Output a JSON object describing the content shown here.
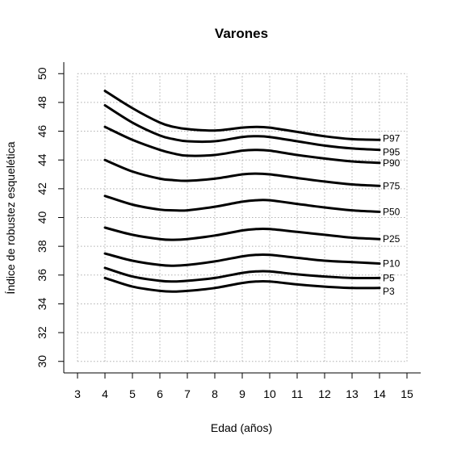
{
  "chart_data": {
    "type": "line",
    "title": "Varones",
    "xlabel": "Edad (años)",
    "ylabel": "Índice de robustez esquelética",
    "xlim": [
      3,
      15
    ],
    "ylim": [
      30,
      50
    ],
    "xticks": [
      3,
      4,
      5,
      6,
      7,
      8,
      9,
      10,
      11,
      12,
      13,
      14,
      15
    ],
    "yticks": [
      30,
      32,
      34,
      36,
      38,
      40,
      42,
      44,
      46,
      48,
      50
    ],
    "grid": true,
    "x": [
      4,
      5,
      6,
      6.5,
      7,
      8,
      9,
      9.5,
      10,
      11,
      12,
      13,
      14
    ],
    "series": [
      {
        "name": "P3",
        "values": [
          35.8,
          35.2,
          34.9,
          34.85,
          34.9,
          35.1,
          35.45,
          35.55,
          35.55,
          35.35,
          35.2,
          35.1,
          35.1
        ]
      },
      {
        "name": "P5",
        "values": [
          36.5,
          35.9,
          35.6,
          35.55,
          35.6,
          35.8,
          36.15,
          36.25,
          36.25,
          36.05,
          35.9,
          35.8,
          35.8
        ]
      },
      {
        "name": "P10",
        "values": [
          37.5,
          37.0,
          36.7,
          36.65,
          36.7,
          36.95,
          37.3,
          37.4,
          37.4,
          37.2,
          37.0,
          36.9,
          36.8
        ]
      },
      {
        "name": "P25",
        "values": [
          39.3,
          38.8,
          38.5,
          38.45,
          38.5,
          38.75,
          39.1,
          39.2,
          39.2,
          39.0,
          38.8,
          38.6,
          38.5
        ]
      },
      {
        "name": "P50",
        "values": [
          41.5,
          40.9,
          40.55,
          40.5,
          40.5,
          40.75,
          41.1,
          41.2,
          41.2,
          40.95,
          40.7,
          40.5,
          40.4
        ]
      },
      {
        "name": "P75",
        "values": [
          44.0,
          43.2,
          42.7,
          42.6,
          42.55,
          42.7,
          43.0,
          43.05,
          43.0,
          42.75,
          42.5,
          42.3,
          42.2
        ]
      },
      {
        "name": "P90",
        "values": [
          46.3,
          45.4,
          44.7,
          44.45,
          44.3,
          44.35,
          44.65,
          44.7,
          44.65,
          44.35,
          44.1,
          43.9,
          43.8
        ]
      },
      {
        "name": "P95",
        "values": [
          47.8,
          46.6,
          45.7,
          45.45,
          45.3,
          45.3,
          45.6,
          45.65,
          45.6,
          45.3,
          45.0,
          44.8,
          44.7
        ]
      },
      {
        "name": "P97",
        "values": [
          48.8,
          47.6,
          46.6,
          46.3,
          46.15,
          46.05,
          46.25,
          46.3,
          46.25,
          45.95,
          45.65,
          45.45,
          45.4
        ]
      }
    ]
  }
}
